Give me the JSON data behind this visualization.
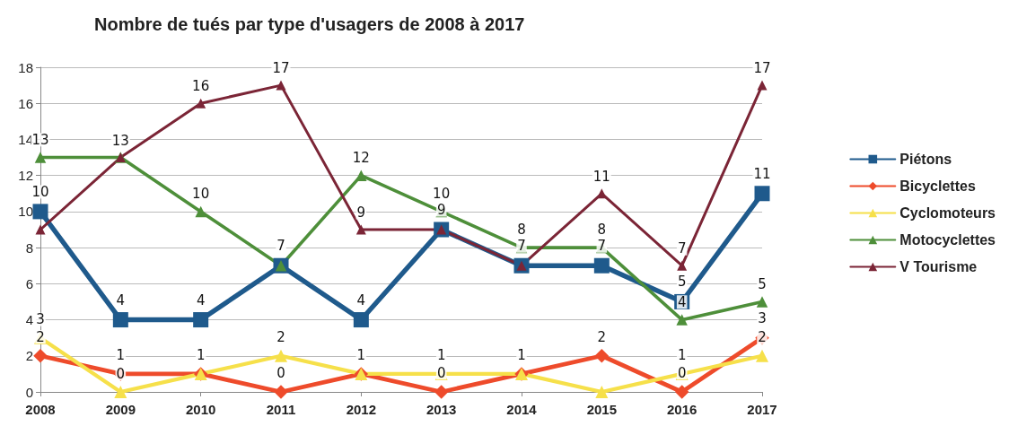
{
  "chart_data": {
    "type": "line",
    "title": "Nombre de tués par type d'usagers de 2008 à 2017",
    "categories": [
      "2008",
      "2009",
      "2010",
      "2011",
      "2012",
      "2013",
      "2014",
      "2015",
      "2016",
      "2017"
    ],
    "series": [
      {
        "name": "Piétons",
        "color": "#1f5a8c",
        "marker": "square",
        "values": [
          10,
          4,
          4,
          7,
          4,
          9,
          7,
          7,
          5,
          11
        ],
        "value_labels": [
          "10",
          "4",
          "4",
          "7",
          "4",
          "9",
          "7",
          "7",
          "5",
          "11"
        ]
      },
      {
        "name": "Bicyclettes",
        "color": "#ee4b2b",
        "marker": "diamond",
        "values": [
          2,
          1,
          1,
          0,
          1,
          0,
          1,
          2,
          0,
          3
        ],
        "value_labels": [
          "2",
          "1",
          "1",
          "0",
          "1",
          "0",
          "1",
          "2",
          "0",
          "3"
        ]
      },
      {
        "name": "Cyclomoteurs",
        "color": "#f6e04a",
        "marker": "triangle",
        "values": [
          3,
          0,
          1,
          2,
          1,
          1,
          1,
          0,
          1,
          2
        ],
        "value_labels": [
          "3",
          "0",
          null,
          "2",
          null,
          "1",
          null,
          null,
          "1",
          "2"
        ]
      },
      {
        "name": "Motocyclettes",
        "color": "#4e8f3a",
        "marker": "triangle",
        "values": [
          13,
          13,
          10,
          7,
          12,
          10,
          8,
          8,
          4,
          5
        ],
        "value_labels": [
          "13",
          null,
          "10",
          null,
          "12",
          "10",
          "8",
          "8",
          "4",
          "5"
        ]
      },
      {
        "name": "V Tourisme",
        "color": "#7b2536",
        "marker": "triangle",
        "values": [
          9,
          13,
          16,
          17,
          9,
          9,
          7,
          11,
          7,
          17
        ],
        "value_labels": [
          null,
          "13",
          "16",
          "17",
          "9",
          null,
          null,
          "11",
          "7",
          "17"
        ]
      }
    ],
    "ylim": [
      0,
      18
    ],
    "yticks": [
      0,
      2,
      4,
      6,
      8,
      10,
      12,
      14,
      16,
      18
    ],
    "grid": "y",
    "legend": "right",
    "line_style": "solid"
  }
}
